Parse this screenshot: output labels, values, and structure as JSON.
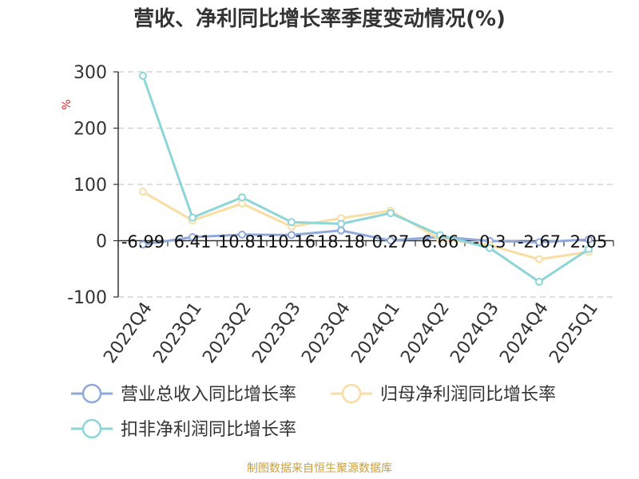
{
  "chart_data": {
    "type": "line",
    "title": "营收、净利同比增长率季度变动情况(%)",
    "ylabel": "%",
    "ylim": [
      -100,
      300
    ],
    "yticks": [
      -100,
      0,
      100,
      200,
      300
    ],
    "categories": [
      "2022Q4",
      "2023Q1",
      "2023Q2",
      "2023Q3",
      "2023Q4",
      "2024Q1",
      "2024Q2",
      "2024Q3",
      "2024Q4",
      "2025Q1"
    ],
    "grid": true,
    "legend_position": "bottom",
    "series": [
      {
        "name": "营业总收入同比增长率",
        "color": "#8fa9db",
        "values": [
          -6.99,
          6.41,
          10.81,
          10.16,
          18.18,
          0.27,
          6.66,
          -0.3,
          -2.67,
          2.05
        ],
        "labels": [
          "-6.99",
          "6.41",
          "10.81",
          "10.16",
          "18.18",
          "0.27",
          "6.66",
          "-0.3",
          "-2.67",
          "2.05"
        ],
        "data_labels": true
      },
      {
        "name": "归母净利润同比增长率",
        "color": "#f9dda3",
        "values": [
          87,
          36,
          66,
          25,
          40,
          53,
          3,
          -8,
          -33,
          -20
        ],
        "data_labels": false
      },
      {
        "name": "扣非净利润同比增长率",
        "color": "#8dd5d8",
        "values": [
          293,
          41,
          77,
          33,
          30,
          49,
          10,
          -13,
          -73,
          -15
        ],
        "data_labels": false
      }
    ],
    "source": "制图数据来自恒生聚源数据库"
  }
}
